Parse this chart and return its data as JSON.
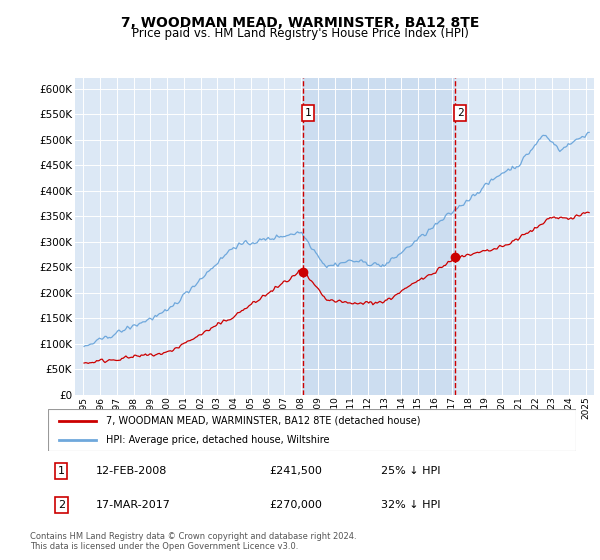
{
  "title": "7, WOODMAN MEAD, WARMINSTER, BA12 8TE",
  "subtitle": "Price paid vs. HM Land Registry's House Price Index (HPI)",
  "legend_property": "7, WOODMAN MEAD, WARMINSTER, BA12 8TE (detached house)",
  "legend_hpi": "HPI: Average price, detached house, Wiltshire",
  "annotation1_label": "1",
  "annotation1_date": "12-FEB-2008",
  "annotation1_price": "£241,500",
  "annotation1_hpi": "25% ↓ HPI",
  "annotation2_label": "2",
  "annotation2_date": "17-MAR-2017",
  "annotation2_price": "£270,000",
  "annotation2_hpi": "32% ↓ HPI",
  "footnote_line1": "Contains HM Land Registry data © Crown copyright and database right 2024.",
  "footnote_line2": "This data is licensed under the Open Government Licence v3.0.",
  "vline1_x": 2008.12,
  "vline2_x": 2017.21,
  "sale1_x": 2008.12,
  "sale1_y": 241500,
  "sale2_x": 2017.21,
  "sale2_y": 270000,
  "ylim": [
    0,
    620000
  ],
  "xlim": [
    1994.5,
    2025.5
  ],
  "yticks": [
    0,
    50000,
    100000,
    150000,
    200000,
    250000,
    300000,
    350000,
    400000,
    450000,
    500000,
    550000,
    600000
  ],
  "plot_bg": "#dce8f5",
  "property_color": "#cc0000",
  "hpi_color": "#6fa8dc",
  "shade_color": "#ccddf0"
}
